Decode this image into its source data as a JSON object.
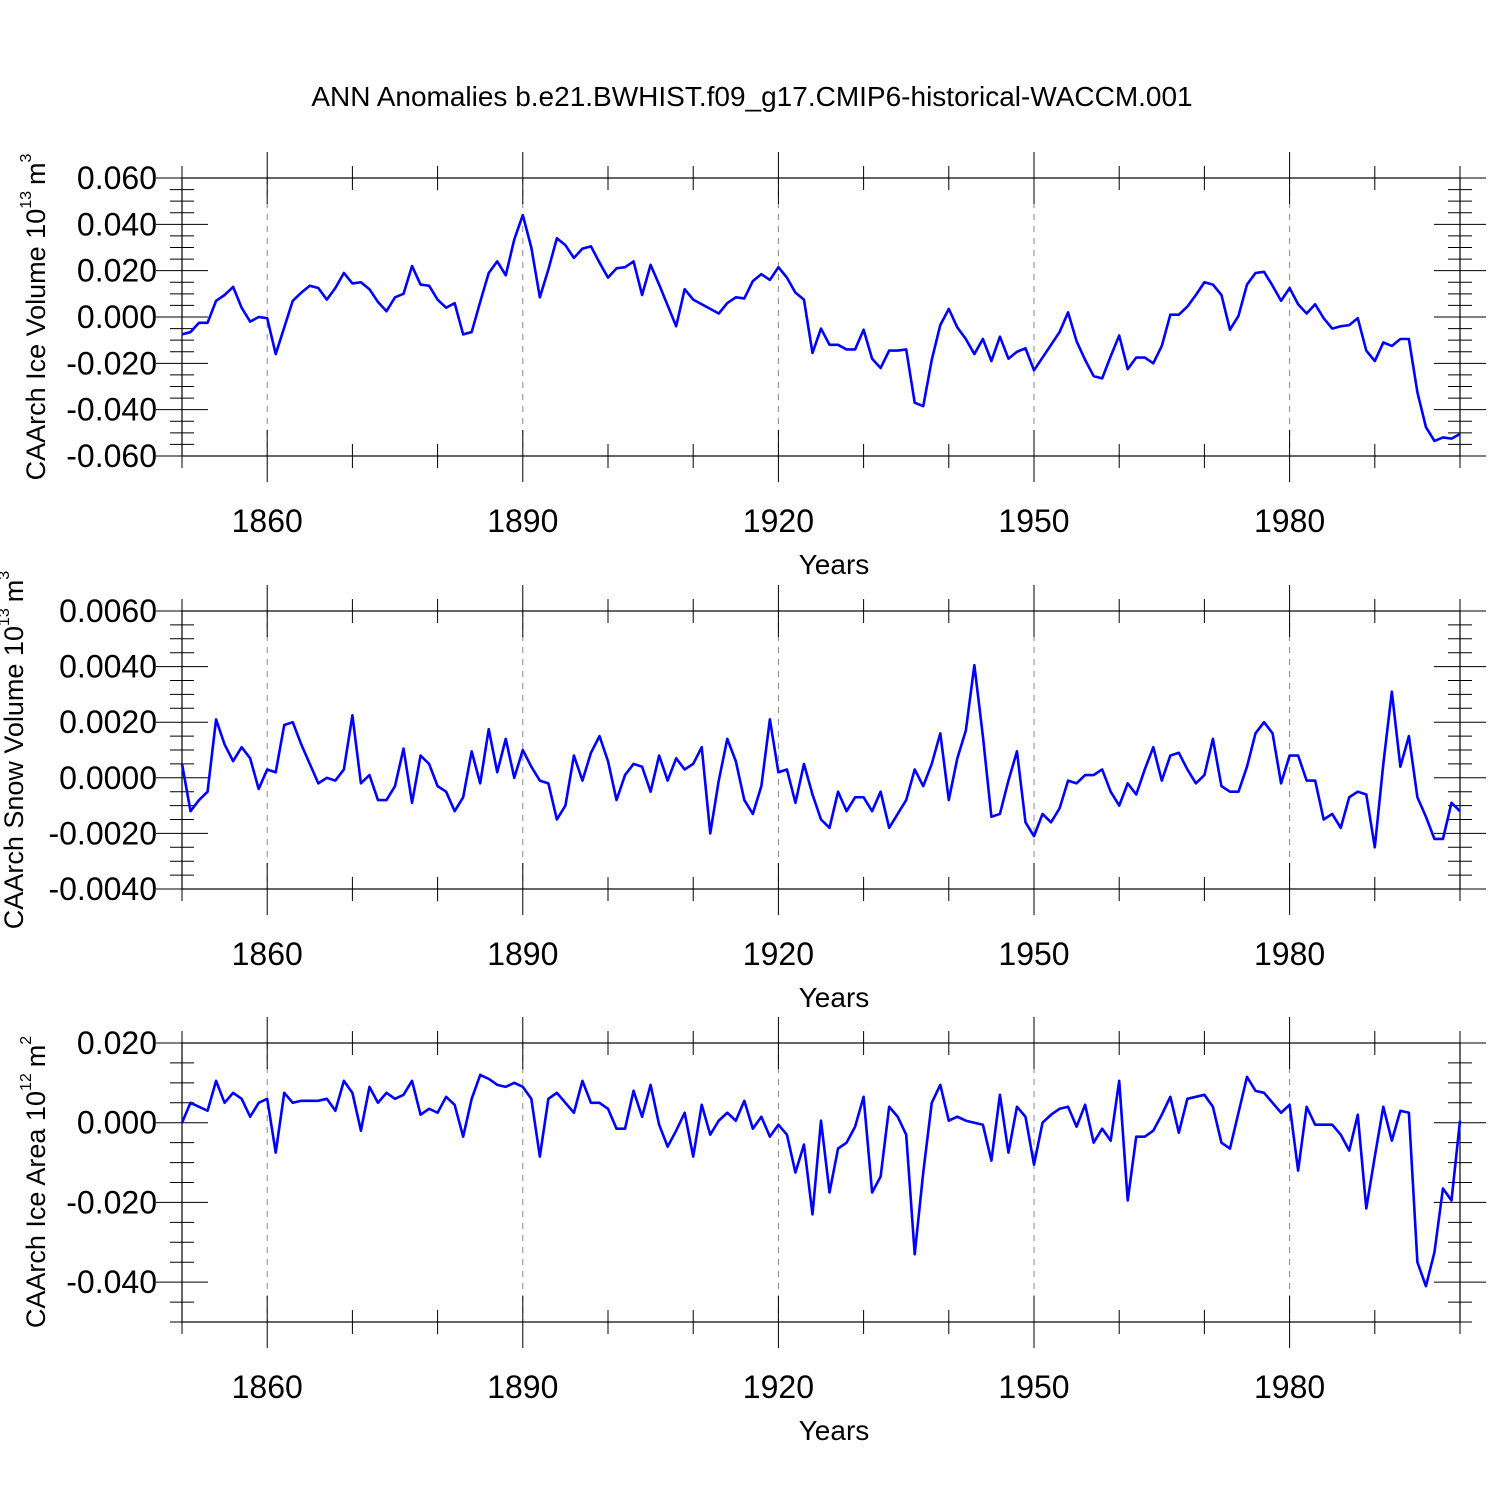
{
  "title": "ANN Anomalies b.e21.BWHIST.f09_g17.CMIP6-historical-WACCM.001",
  "line_color": "#0000ff",
  "chart_data": [
    {
      "type": "line",
      "ylabel_main": "CAArch Ice Volume 10",
      "ylabel_exp": "13",
      "ylabel_unit": "m",
      "ylabel_unit_exp": "3",
      "xlabel": "Years",
      "xlim": [
        1850,
        2000
      ],
      "ylim": [
        -0.06,
        0.06
      ],
      "yticks": [
        -0.06,
        -0.04,
        -0.02,
        0.0,
        0.02,
        0.04,
        0.06
      ],
      "ytick_labels": [
        "-0.060",
        "-0.040",
        "-0.020",
        "0.000",
        "0.020",
        "0.040",
        "0.060"
      ],
      "xticks": [
        1860,
        1890,
        1920,
        1950,
        1980
      ],
      "xtick_labels": [
        "1860",
        "1890",
        "1920",
        "1950",
        "1980"
      ],
      "x_start": 1850,
      "values": [
        -0.0075,
        -0.0065,
        -0.0025,
        -0.0025,
        0.007,
        0.0095,
        0.013,
        0.004,
        -0.002,
        0.0,
        -0.0005,
        -0.016,
        -0.0045,
        0.007,
        0.0105,
        0.0135,
        0.0125,
        0.0075,
        0.0125,
        0.019,
        0.0145,
        0.015,
        0.012,
        0.0065,
        0.0025,
        0.0085,
        0.01,
        0.022,
        0.014,
        0.0135,
        0.0075,
        0.004,
        0.006,
        -0.0075,
        -0.0065,
        0.0065,
        0.019,
        0.024,
        0.018,
        0.0335,
        0.044,
        0.03,
        0.0085,
        0.0205,
        0.034,
        0.031,
        0.0255,
        0.0295,
        0.0305,
        0.0235,
        0.017,
        0.021,
        0.0215,
        0.024,
        0.0095,
        0.0225,
        0.014,
        0.005,
        -0.004,
        0.012,
        0.0075,
        0.0055,
        0.0035,
        0.0015,
        0.006,
        0.0085,
        0.008,
        0.0155,
        0.0185,
        0.016,
        0.0215,
        0.017,
        0.0105,
        0.0075,
        -0.0155,
        -0.005,
        -0.012,
        -0.012,
        -0.014,
        -0.014,
        -0.0055,
        -0.018,
        -0.022,
        -0.0145,
        -0.0145,
        -0.014,
        -0.037,
        -0.0385,
        -0.0185,
        -0.0035,
        0.0035,
        -0.0045,
        -0.0095,
        -0.016,
        -0.0095,
        -0.019,
        -0.0085,
        -0.018,
        -0.015,
        -0.0135,
        -0.023,
        -0.0175,
        -0.012,
        -0.0065,
        0.002,
        -0.0105,
        -0.0185,
        -0.0255,
        -0.0265,
        -0.017,
        -0.008,
        -0.0225,
        -0.0175,
        -0.0175,
        -0.02,
        -0.0125,
        0.001,
        0.001,
        0.0045,
        0.0095,
        0.015,
        0.014,
        0.0095,
        -0.0055,
        0.0005,
        0.014,
        0.019,
        0.0195,
        0.0135,
        0.007,
        0.0125,
        0.0055,
        0.0015,
        0.0055,
        -0.0005,
        -0.005,
        -0.004,
        -0.0035,
        -0.0005,
        -0.0145,
        -0.019,
        -0.011,
        -0.0125,
        -0.0095,
        -0.0095,
        -0.0325,
        -0.0475,
        -0.0535,
        -0.052,
        -0.0525,
        -0.0505
      ]
    },
    {
      "type": "line",
      "ylabel_main": "CAArch Snow Volume 10",
      "ylabel_exp": "13",
      "ylabel_unit": "m",
      "ylabel_unit_exp": "3",
      "xlabel": "Years",
      "xlim": [
        1850,
        2000
      ],
      "ylim": [
        -0.004,
        0.006
      ],
      "yticks": [
        -0.004,
        -0.002,
        0.0,
        0.002,
        0.004,
        0.006
      ],
      "ytick_labels": [
        "-0.0040",
        "-0.0020",
        "0.0000",
        "0.0020",
        "0.0040",
        "0.0060"
      ],
      "xticks": [
        1860,
        1890,
        1920,
        1950,
        1980
      ],
      "xtick_labels": [
        "1860",
        "1890",
        "1920",
        "1950",
        "1980"
      ],
      "x_start": 1850,
      "values": [
        0.0005,
        -0.0012,
        -0.0008,
        -0.0005,
        0.0021,
        0.0012,
        0.0006,
        0.0011,
        0.0007,
        -0.0004,
        0.0003,
        0.0002,
        0.0019,
        0.002,
        0.0012,
        0.0005,
        -0.0002,
        0.0,
        -0.0001,
        0.0003,
        0.00225,
        -0.0002,
        0.0001,
        -0.0008,
        -0.0008,
        -0.0003,
        0.00105,
        -0.0009,
        0.0008,
        0.0005,
        -0.0003,
        -0.0005,
        -0.0012,
        -0.0007,
        0.00095,
        -0.0002,
        0.00175,
        0.0002,
        0.0014,
        0.0,
        0.001,
        0.0004,
        -0.0001,
        -0.0002,
        -0.0015,
        -0.001,
        0.0008,
        -0.0001,
        0.0009,
        0.0015,
        0.0006,
        -0.0008,
        0.0001,
        0.0005,
        0.0004,
        -0.0005,
        0.0008,
        -0.0001,
        0.0007,
        0.0003,
        0.0005,
        0.0011,
        -0.002,
        -0.0001,
        0.0014,
        0.0006,
        -0.0008,
        -0.0013,
        -0.0003,
        0.0021,
        0.0002,
        0.0003,
        -0.0009,
        0.0005,
        -0.0006,
        -0.0015,
        -0.0018,
        -0.0005,
        -0.0012,
        -0.0007,
        -0.0007,
        -0.0012,
        -0.0005,
        -0.0018,
        -0.0013,
        -0.0008,
        0.0003,
        -0.0003,
        0.0005,
        0.0016,
        -0.0008,
        0.0007,
        0.0017,
        0.00405,
        0.0015,
        -0.0014,
        -0.0013,
        -0.0001,
        0.00095,
        -0.0016,
        -0.0021,
        -0.0013,
        -0.0016,
        -0.0011,
        -0.0001,
        -0.0002,
        0.0001,
        0.0001,
        0.0003,
        -0.0005,
        -0.001,
        -0.0002,
        -0.0006,
        0.0003,
        0.0011,
        -0.0001,
        0.0008,
        0.0009,
        0.0003,
        -0.0002,
        0.0001,
        0.0014,
        -0.0003,
        -0.0005,
        -0.0005,
        0.0004,
        0.0016,
        0.002,
        0.0016,
        -0.0002,
        0.0008,
        0.0008,
        -0.0001,
        -0.0001,
        -0.0015,
        -0.0013,
        -0.0018,
        -0.0007,
        -0.0005,
        -0.0006,
        -0.0025,
        0.0005,
        0.0031,
        0.0004,
        0.0015,
        -0.0007,
        -0.0014,
        -0.0022,
        -0.0022,
        -0.0009,
        -0.0012
      ]
    },
    {
      "type": "line",
      "ylabel_main": "CAArch Ice Area 10",
      "ylabel_exp": "12",
      "ylabel_unit": "m",
      "ylabel_unit_exp": "2",
      "xlabel": "Years",
      "xlim": [
        1850,
        2000
      ],
      "ylim": [
        -0.05,
        0.02
      ],
      "yticks": [
        -0.04,
        -0.02,
        0.0,
        0.02
      ],
      "ytick_labels": [
        "-0.040",
        "-0.020",
        "0.000",
        "0.020"
      ],
      "xticks": [
        1860,
        1890,
        1920,
        1950,
        1980
      ],
      "xtick_labels": [
        "1860",
        "1890",
        "1920",
        "1950",
        "1980"
      ],
      "x_start": 1850,
      "values": [
        0.0,
        0.005,
        0.004,
        0.003,
        0.0105,
        0.005,
        0.0075,
        0.006,
        0.0015,
        0.005,
        0.006,
        -0.0075,
        0.0075,
        0.005,
        0.0055,
        0.0055,
        0.0055,
        0.006,
        0.003,
        0.0105,
        0.0075,
        -0.002,
        0.009,
        0.005,
        0.0075,
        0.006,
        0.007,
        0.0105,
        0.002,
        0.0035,
        0.0025,
        0.0065,
        0.0045,
        -0.0035,
        0.006,
        0.012,
        0.011,
        0.0095,
        0.009,
        0.01,
        0.009,
        0.006,
        -0.0085,
        0.006,
        0.0075,
        0.005,
        0.0025,
        0.0105,
        0.005,
        0.005,
        0.0035,
        -0.0015,
        -0.0015,
        0.008,
        0.0015,
        0.0095,
        -0.0005,
        -0.006,
        -0.002,
        0.0025,
        -0.0085,
        0.0045,
        -0.003,
        0.0005,
        0.0025,
        0.0005,
        0.0055,
        -0.0015,
        0.0015,
        -0.0035,
        -0.0005,
        -0.003,
        -0.0125,
        -0.0055,
        -0.023,
        0.0005,
        -0.0175,
        -0.0065,
        -0.005,
        -0.001,
        0.0065,
        -0.0175,
        -0.0135,
        0.004,
        0.0015,
        -0.003,
        -0.033,
        -0.0125,
        0.005,
        0.0095,
        0.0005,
        0.0015,
        0.0005,
        0.0,
        -0.0005,
        -0.0095,
        0.007,
        -0.0075,
        0.004,
        0.0015,
        -0.0105,
        0.0,
        0.002,
        0.0035,
        0.004,
        -0.001,
        0.0045,
        -0.005,
        -0.0015,
        -0.0045,
        0.0105,
        -0.0195,
        -0.0035,
        -0.0035,
        -0.002,
        0.002,
        0.0065,
        -0.0025,
        0.006,
        0.0065,
        0.007,
        0.004,
        -0.005,
        -0.0065,
        0.0025,
        0.0115,
        0.008,
        0.0075,
        0.005,
        0.0025,
        0.0045,
        -0.012,
        0.004,
        -0.0005,
        -0.0005,
        -0.0005,
        -0.003,
        -0.007,
        0.002,
        -0.0215,
        -0.0085,
        0.004,
        -0.0045,
        0.003,
        0.0025,
        -0.035,
        -0.041,
        -0.0325,
        -0.0165,
        -0.0195,
        0.0005
      ]
    }
  ]
}
